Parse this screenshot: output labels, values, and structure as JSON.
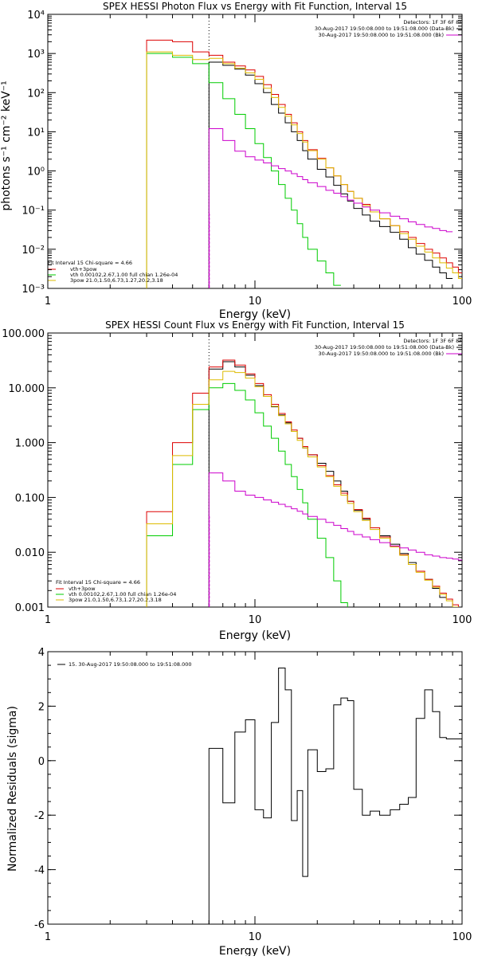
{
  "chart_data": [
    {
      "type": "line",
      "title": "SPEX HESSI Photon Flux vs Energy with Fit Function, Interval 15",
      "xlabel": "Energy (keV)",
      "ylabel": "photons s⁻¹ cm⁻² keV⁻¹",
      "xscale": "log",
      "yscale": "log",
      "xlim": [
        1,
        100
      ],
      "ylim": [
        0.001,
        10000
      ],
      "x_ticks": [
        {
          "v": 1,
          "t": "1"
        },
        {
          "v": 10,
          "t": "10"
        },
        {
          "v": 100,
          "t": "100"
        }
      ],
      "y_ticks": [
        {
          "v": 0.001,
          "t": "10⁻³"
        },
        {
          "v": 0.01,
          "t": "10⁻²"
        },
        {
          "v": 0.1,
          "t": "10⁻¹"
        },
        {
          "v": 1,
          "t": "10⁰"
        },
        {
          "v": 10,
          "t": "10¹"
        },
        {
          "v": 100,
          "t": "10²"
        },
        {
          "v": 1000,
          "t": "10³"
        },
        {
          "v": 10000,
          "t": "10⁴"
        }
      ],
      "vlines": [
        {
          "x": 6,
          "style": "dotted",
          "color": "#000000"
        }
      ],
      "bin_edges": [
        3,
        4,
        5,
        6,
        7,
        8,
        9,
        10,
        11,
        12,
        13,
        14,
        15,
        16,
        17,
        18,
        20,
        22,
        24,
        26,
        28,
        30,
        33,
        36,
        40,
        45,
        50,
        55,
        60,
        66,
        72,
        78,
        84,
        90,
        96,
        100
      ],
      "series": [
        {
          "name": "data",
          "color": "#000000",
          "start": 6,
          "values": [
            600,
            500,
            400,
            280,
            170,
            100,
            50,
            30,
            17,
            10,
            6,
            3.3,
            2.0,
            1.1,
            0.7,
            0.43,
            0.26,
            0.17,
            0.11,
            0.075,
            0.052,
            0.038,
            0.027,
            0.018,
            0.011,
            0.0075,
            0.0052,
            0.0035,
            0.0025,
            0.0018
          ]
        },
        {
          "name": "vth+3pow",
          "color": "#dd0000",
          "start": 3,
          "values": [
            2200,
            2000,
            1100,
            900,
            600,
            480,
            380,
            260,
            160,
            90,
            50,
            28,
            17,
            10,
            6,
            3.5,
            2.1,
            1.2,
            0.75,
            0.45,
            0.3,
            0.2,
            0.14,
            0.09,
            0.06,
            0.04,
            0.028,
            0.02,
            0.014,
            0.01,
            0.008,
            0.006,
            0.0045,
            0.0035,
            0.0025
          ]
        },
        {
          "name": "vth 0.00102,2.67,1.00  full chian 1.26e-04",
          "color": "#00cc00",
          "start": 3,
          "values": [
            1000,
            800,
            550,
            180,
            70,
            28,
            12,
            5,
            2.2,
            1.0,
            0.45,
            0.2,
            0.1,
            0.045,
            0.02,
            0.01,
            0.005,
            0.0025,
            0.0012
          ]
        },
        {
          "name": "3pow 21.0,1.50,6.73,1.27,20.2,3.18",
          "color": "#ddbb00",
          "start": 3,
          "values": [
            1100,
            900,
            700,
            750,
            550,
            420,
            320,
            220,
            130,
            75,
            42,
            25,
            15,
            9,
            5.5,
            3.3,
            2.0,
            1.2,
            0.75,
            0.45,
            0.3,
            0.2,
            0.13,
            0.09,
            0.06,
            0.04,
            0.025,
            0.018,
            0.012,
            0.0085,
            0.006,
            0.0045,
            0.0033,
            0.0025,
            0.0018
          ]
        },
        {
          "name": "(Bk)",
          "color": "#cc00cc",
          "start": 6,
          "values": [
            12,
            6,
            3.2,
            2.3,
            1.9,
            1.6,
            1.35,
            1.15,
            1.0,
            0.85,
            0.72,
            0.6,
            0.5,
            0.4,
            0.32,
            0.27,
            0.22,
            0.18,
            0.15,
            0.12,
            0.1,
            0.085,
            0.07,
            0.06,
            0.05,
            0.043,
            0.037,
            0.034,
            0.03,
            0.028
          ]
        }
      ],
      "legend": {
        "header": "Fit Interval 15   Chi-square = 4.66",
        "lines": [
          {
            "text": "vth+3pow",
            "color": "#dd0000"
          },
          {
            "text": "vth 0.00102,2.67,1.00  full chian 1.26e-04",
            "color": "#00cc00"
          },
          {
            "text": "3pow 21.0,1.50,6.73,1.27,20.2,3.18",
            "color": "#ddbb00"
          }
        ]
      },
      "info": {
        "detectors": "Detectors: 1F 3F 6F 8F",
        "line1": "30-Aug-2017 19:50:08.000 to 19:51:08.000 (Data-Bk)",
        "line2": "30-Aug-2017 19:50:08.000 to 19:51:08.000 (Bk)"
      }
    },
    {
      "type": "line",
      "title": "SPEX HESSI Count Flux vs Energy with Fit Function, Interval 15",
      "xlabel": "Energy (keV)",
      "ylabel": "",
      "xscale": "log",
      "yscale": "log",
      "xlim": [
        1,
        100
      ],
      "ylim": [
        0.001,
        100
      ],
      "x_ticks": [
        {
          "v": 1,
          "t": "1"
        },
        {
          "v": 10,
          "t": "10"
        },
        {
          "v": 100,
          "t": "100"
        }
      ],
      "y_ticks": [
        {
          "v": 0.001,
          "t": "0.001"
        },
        {
          "v": 0.01,
          "t": "0.010"
        },
        {
          "v": 0.1,
          "t": "0.100"
        },
        {
          "v": 1,
          "t": "1.000"
        },
        {
          "v": 10,
          "t": "10.000"
        },
        {
          "v": 100,
          "t": "100.000"
        }
      ],
      "vlines": [
        {
          "x": 6,
          "style": "dotted",
          "color": "#000000"
        }
      ],
      "bin_edges": [
        3,
        4,
        5,
        6,
        7,
        8,
        9,
        10,
        11,
        12,
        13,
        14,
        15,
        16,
        17,
        18,
        20,
        22,
        24,
        26,
        28,
        30,
        33,
        36,
        40,
        45,
        50,
        55,
        60,
        66,
        72,
        78,
        84,
        90,
        96,
        100
      ],
      "series": [
        {
          "name": "data",
          "color": "#000000",
          "start": 6,
          "values": [
            22,
            30,
            24,
            17,
            11,
            7,
            4.5,
            3.2,
            2.3,
            1.6,
            1.2,
            0.8,
            0.6,
            0.42,
            0.3,
            0.2,
            0.13,
            0.085,
            0.058,
            0.04,
            0.028,
            0.02,
            0.014,
            0.0095,
            0.0065,
            0.0045,
            0.0032,
            0.0022,
            0.0015
          ]
        },
        {
          "name": "vth+3pow",
          "color": "#dd0000",
          "start": 3,
          "values": [
            0.055,
            1.0,
            8.0,
            24,
            32,
            26,
            18,
            12,
            7.5,
            5.0,
            3.4,
            2.4,
            1.7,
            1.2,
            0.85,
            0.6,
            0.38,
            0.25,
            0.17,
            0.12,
            0.085,
            0.06,
            0.042,
            0.028,
            0.019,
            0.013,
            0.009,
            0.006,
            0.0045,
            0.0032,
            0.0024,
            0.0018,
            0.0014,
            0.0011,
            0.0009
          ]
        },
        {
          "name": "vth 0.00102,2.67,1.00  full chian 1.26e-04",
          "color": "#00cc00",
          "start": 3,
          "values": [
            0.02,
            0.4,
            4.0,
            10,
            12,
            9,
            6,
            3.5,
            2.0,
            1.2,
            0.7,
            0.4,
            0.24,
            0.14,
            0.08,
            0.04,
            0.018,
            0.008,
            0.003,
            0.0012,
            0.0005
          ]
        },
        {
          "name": "3pow 21.0,1.50,6.73,1.27,20.2,3.18",
          "color": "#ddbb00",
          "start": 3,
          "values": [
            0.033,
            0.58,
            5.0,
            14,
            20,
            19,
            15,
            10.5,
            7.0,
            4.6,
            3.1,
            2.2,
            1.6,
            1.1,
            0.8,
            0.55,
            0.36,
            0.24,
            0.16,
            0.11,
            0.078,
            0.055,
            0.038,
            0.026,
            0.018,
            0.0125,
            0.0088,
            0.006,
            0.0043,
            0.0031,
            0.0023,
            0.0017,
            0.0013,
            0.001,
            0.0008
          ]
        },
        {
          "name": "(Bk)",
          "color": "#cc00cc",
          "start": 6,
          "values": [
            0.28,
            0.2,
            0.13,
            0.11,
            0.1,
            0.09,
            0.082,
            0.075,
            0.068,
            0.062,
            0.056,
            0.05,
            0.045,
            0.04,
            0.035,
            0.031,
            0.027,
            0.024,
            0.021,
            0.019,
            0.017,
            0.015,
            0.013,
            0.012,
            0.011,
            0.01,
            0.009,
            0.0085,
            0.008,
            0.0078,
            0.0075,
            0.0072,
            0.007,
            0.0068,
            0.0066
          ]
        }
      ],
      "legend": {
        "header": "Fit Interval 15   Chi-square = 4.66",
        "lines": [
          {
            "text": "vth+3pow",
            "color": "#dd0000"
          },
          {
            "text": "vth 0.00102,2.67,1.00  full chian 1.26e-04",
            "color": "#00cc00"
          },
          {
            "text": "3pow 21.0,1.50,6.73,1.27,20.2,3.18",
            "color": "#ddbb00"
          }
        ]
      },
      "info": {
        "detectors": "Detectors: 1F 3F 6F 8F",
        "line1": "30-Aug-2017 19:50:08.000 to 19:51:08.000 (Data-Bk)",
        "line2": "30-Aug-2017 19:50:08.000 to 19:51:08.000 (Bk)"
      }
    },
    {
      "type": "line",
      "title": "",
      "xlabel": "Energy (keV)",
      "ylabel": "Normalized Residuals (sigma)",
      "xscale": "log",
      "yscale": "linear",
      "xlim": [
        1,
        100
      ],
      "ylim": [
        -6,
        4
      ],
      "x_ticks": [
        {
          "v": 1,
          "t": "1"
        },
        {
          "v": 10,
          "t": "10"
        },
        {
          "v": 100,
          "t": "100"
        }
      ],
      "y_ticks": [
        {
          "v": -6,
          "t": "-6"
        },
        {
          "v": -4,
          "t": "-4"
        },
        {
          "v": -2,
          "t": "-2"
        },
        {
          "v": 0,
          "t": "0"
        },
        {
          "v": 2,
          "t": "2"
        },
        {
          "v": 4,
          "t": "4"
        }
      ],
      "bin_edges": [
        6,
        7,
        8,
        9,
        10,
        11,
        12,
        13,
        14,
        15,
        16,
        17,
        18,
        20,
        22,
        24,
        26,
        28,
        30,
        33,
        36,
        40,
        45,
        50,
        55,
        60,
        66,
        72,
        78,
        84,
        90,
        96,
        100
      ],
      "series": [
        {
          "name": "15. 30-Aug-2017 19:50:08.000 to 19:51:08.000",
          "color": "#000000",
          "start": 6,
          "drop_to": -6,
          "values": [
            0.45,
            -1.55,
            1.05,
            1.5,
            -1.8,
            -2.1,
            1.4,
            3.4,
            2.6,
            -2.2,
            -1.1,
            -4.25,
            0.4,
            -0.4,
            -0.3,
            2.05,
            2.3,
            2.2,
            -1.05,
            -2.0,
            -1.85,
            -2.0,
            -1.8,
            -1.6,
            -1.35,
            1.55,
            2.6,
            1.8,
            0.85,
            0.8,
            0.8,
            0.8
          ]
        }
      ],
      "legend": {
        "header": "",
        "lines": [
          {
            "text": "15. 30-Aug-2017 19:50:08.000 to 19:51:08.000",
            "color": "#000000"
          }
        ]
      }
    }
  ]
}
